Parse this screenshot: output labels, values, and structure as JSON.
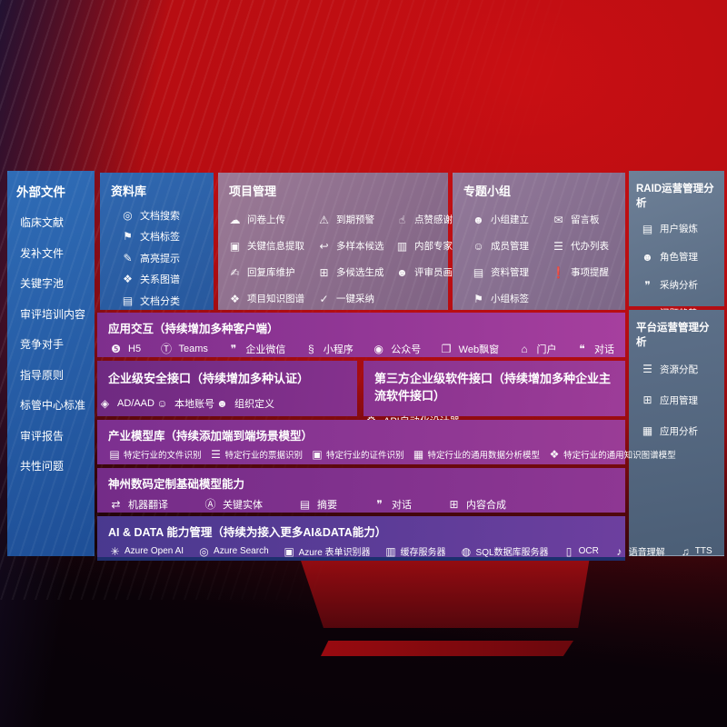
{
  "colors": {
    "background_red": "#c90f13",
    "panel_blue": "#2b63ab",
    "panel_mauve": "#8d7192",
    "panel_slate": "#63758c",
    "row_purple": "#8a3592",
    "row_indigo": "#55409a",
    "text": "#ffffff"
  },
  "sidebar": {
    "title": "外部文件",
    "items": [
      {
        "name": "external-clinical-literature",
        "label": "临床文献"
      },
      {
        "name": "external-supplement-files",
        "label": "发补文件"
      },
      {
        "name": "external-keyword-pool",
        "label": "关键字池"
      },
      {
        "name": "external-review-training",
        "label": "审评培训内容"
      },
      {
        "name": "external-competitors",
        "label": "竞争对手"
      },
      {
        "name": "external-guidelines",
        "label": "指导原则"
      },
      {
        "name": "external-center-standards",
        "label": "标管中心标准"
      },
      {
        "name": "external-review-reports",
        "label": "审评报告"
      },
      {
        "name": "external-common-issues",
        "label": "共性问题"
      }
    ]
  },
  "library": {
    "title": "资料库",
    "items": [
      {
        "name": "doc-search",
        "icon": "doc-search-icon",
        "glyph": "◎",
        "label": "文档搜索"
      },
      {
        "name": "doc-tags",
        "icon": "tag-icon",
        "glyph": "⚑",
        "label": "文档标签"
      },
      {
        "name": "highlight-tips",
        "icon": "pen-icon",
        "glyph": "✎",
        "label": "高亮提示"
      },
      {
        "name": "relation-graph",
        "icon": "graph-icon",
        "glyph": "❖",
        "label": "关系图谱"
      },
      {
        "name": "doc-classification",
        "icon": "docs-icon",
        "glyph": "▤",
        "label": "文档分类"
      }
    ]
  },
  "project": {
    "title": "项目管理",
    "items": [
      {
        "name": "questionnaire-upload",
        "icon": "cloud-upload-icon",
        "glyph": "☁",
        "label": "问卷上传"
      },
      {
        "name": "due-warning",
        "icon": "alarm-icon",
        "glyph": "⚠",
        "label": "到期预警"
      },
      {
        "name": "like-thanks",
        "icon": "thumb-up-icon",
        "glyph": "☝",
        "label": "点赞感谢"
      },
      {
        "name": "key-info-extract",
        "icon": "extract-icon",
        "glyph": "▣",
        "label": "关键信息提取"
      },
      {
        "name": "multi-sample-candidate",
        "icon": "reply-arrow-icon",
        "glyph": "↩",
        "label": "多样本候选"
      },
      {
        "name": "internal-expert-ranking",
        "icon": "podium-icon",
        "glyph": "▥",
        "label": "内部专家排名"
      },
      {
        "name": "reply-repo-maintain",
        "icon": "write-icon",
        "glyph": "✍",
        "label": "回复库维护"
      },
      {
        "name": "multi-candidate-generate",
        "icon": "grid-icon",
        "glyph": "⊞",
        "label": "多候选生成"
      },
      {
        "name": "reviewer-profile",
        "icon": "person-icon",
        "glyph": "☻",
        "label": "评审员画像"
      },
      {
        "name": "project-knowledge-graph",
        "icon": "knowledge-graph-icon",
        "glyph": "❖",
        "label": "项目知识图谱"
      },
      {
        "name": "one-click-adopt",
        "icon": "check-icon",
        "glyph": "✓",
        "label": "一键采纳"
      }
    ]
  },
  "topic_group": {
    "title": "专题小组",
    "col1": [
      {
        "name": "group-create",
        "icon": "people-icon",
        "glyph": "☻",
        "label": "小组建立"
      },
      {
        "name": "member-manage",
        "icon": "person-add-icon",
        "glyph": "☺",
        "label": "成员管理"
      },
      {
        "name": "material-manage",
        "icon": "folder-icon",
        "glyph": "▤",
        "label": "资料管理"
      },
      {
        "name": "group-tags",
        "icon": "tag-icon",
        "glyph": "⚑",
        "label": "小组标签"
      }
    ],
    "col2": [
      {
        "name": "message-board",
        "icon": "bbs-icon",
        "glyph": "✉",
        "label": "留言板"
      },
      {
        "name": "todo-list",
        "icon": "clipboard-icon",
        "glyph": "☰",
        "label": "代办列表"
      },
      {
        "name": "matter-reminder",
        "icon": "bell-icon",
        "glyph": "❗",
        "label": "事项提醒"
      }
    ]
  },
  "raid": {
    "title": "RAID运营管理分析",
    "items": [
      {
        "name": "user-training",
        "icon": "id-card-icon",
        "glyph": "▤",
        "label": "用户锻炼"
      },
      {
        "name": "role-manage",
        "icon": "roles-icon",
        "glyph": "☻",
        "label": "角色管理"
      },
      {
        "name": "adoption-analysis",
        "icon": "chat-bubbles-icon",
        "glyph": "❞",
        "label": "采纳分析"
      },
      {
        "name": "issue-trend",
        "icon": "trend-chart-icon",
        "glyph": "↗",
        "label": "问题趋势"
      }
    ]
  },
  "platform": {
    "title": "平台运营管理分析",
    "items": [
      {
        "name": "resource-allocation",
        "icon": "list-icon",
        "glyph": "☰",
        "label": "资源分配"
      },
      {
        "name": "app-manage",
        "icon": "apps-grid-icon",
        "glyph": "⊞",
        "label": "应用管理"
      },
      {
        "name": "app-analysis",
        "icon": "chart-icon",
        "glyph": "▦",
        "label": "应用分析"
      }
    ]
  },
  "rows": {
    "interaction": {
      "title": "应用交互（持续增加多种客户端）",
      "items": [
        {
          "name": "client-h5",
          "icon": "html5-icon",
          "glyph": "❺",
          "label": "H5"
        },
        {
          "name": "client-teams",
          "icon": "teams-icon",
          "glyph": "Ⓣ",
          "label": "Teams"
        },
        {
          "name": "client-wecom",
          "icon": "wecom-icon",
          "glyph": "❞",
          "label": "企业微信"
        },
        {
          "name": "client-miniprogram",
          "icon": "miniprogram-icon",
          "glyph": "§",
          "label": "小程序"
        },
        {
          "name": "client-official-account",
          "icon": "official-account-icon",
          "glyph": "◉",
          "label": "公众号"
        },
        {
          "name": "client-web-popup",
          "icon": "web-window-icon",
          "glyph": "❐",
          "label": "Web飘窗"
        },
        {
          "name": "client-portal",
          "icon": "portal-icon",
          "glyph": "⌂",
          "label": "门户"
        },
        {
          "name": "client-dialog",
          "icon": "dialog-icon",
          "glyph": "❝",
          "label": "对话"
        }
      ]
    },
    "security": {
      "title": "企业级安全接口（持续增加多种认证）",
      "items": [
        {
          "name": "auth-ad-aad",
          "icon": "ad-shield-icon",
          "glyph": "◈",
          "label": "AD/AAD"
        },
        {
          "name": "auth-local-account",
          "icon": "local-account-icon",
          "glyph": "☺",
          "label": "本地账号"
        },
        {
          "name": "auth-org-definition",
          "icon": "org-icon",
          "glyph": "☻",
          "label": "组织定义"
        }
      ]
    },
    "third_party": {
      "title": "第三方企业级软件接口（持续增加多种企业主流软件接口）",
      "items": [
        {
          "name": "api-auto-designer",
          "icon": "gear-api-icon",
          "glyph": "⚙",
          "label": "API自动化设计器"
        }
      ]
    },
    "industry_models": {
      "title": "产业模型库（持续添加端到端场景模型）",
      "items": [
        {
          "name": "industry-file-recognition",
          "icon": "file-icon",
          "glyph": "▤",
          "label": "特定行业的文件识别"
        },
        {
          "name": "industry-invoice-recognition",
          "icon": "receipt-icon",
          "glyph": "☰",
          "label": "特定行业的票据识别"
        },
        {
          "name": "industry-certificate-recognition",
          "icon": "certificate-icon",
          "glyph": "▣",
          "label": "特定行业的证件识别"
        },
        {
          "name": "industry-data-analysis-model",
          "icon": "data-model-icon",
          "glyph": "▦",
          "label": "特定行业的通用数据分析模型"
        },
        {
          "name": "industry-knowledge-graph-model",
          "icon": "knowledge-graph-icon",
          "glyph": "❖",
          "label": "特定行业的通用知识图谱模型"
        }
      ]
    },
    "base_models": {
      "title": "神州数码定制基础模型能力",
      "items": [
        {
          "name": "machine-translation",
          "icon": "translate-icon",
          "glyph": "⇄",
          "label": "机器翻译"
        },
        {
          "name": "key-entity",
          "icon": "entity-icon",
          "glyph": "Ⓐ",
          "label": "关键实体"
        },
        {
          "name": "summary",
          "icon": "summary-doc-icon",
          "glyph": "▤",
          "label": "摘要"
        },
        {
          "name": "dialog",
          "icon": "chat-icon",
          "glyph": "❞",
          "label": "对话"
        },
        {
          "name": "content-synthesis",
          "icon": "compose-icon",
          "glyph": "⊞",
          "label": "内容合成"
        }
      ]
    },
    "ai_data": {
      "title": "AI & DATA 能力管理（持续为接入更多AI&DATA能力）",
      "items": [
        {
          "name": "azure-openai",
          "icon": "openai-icon",
          "glyph": "✳",
          "label": "Azure Open AI"
        },
        {
          "name": "azure-search",
          "icon": "search-icon",
          "glyph": "◎",
          "label": "Azure Search"
        },
        {
          "name": "azure-form-recognizer",
          "icon": "form-icon",
          "glyph": "▣",
          "label": "Azure 表单识别器"
        },
        {
          "name": "cache-server",
          "icon": "cache-icon",
          "glyph": "▥",
          "label": "缓存服务器"
        },
        {
          "name": "sql-db-server",
          "icon": "database-icon",
          "glyph": "◍",
          "label": "SQL数据库服务器"
        },
        {
          "name": "ocr",
          "icon": "ocr-icon",
          "glyph": "▯",
          "label": "OCR"
        },
        {
          "name": "speech-understanding",
          "icon": "speech-icon",
          "glyph": "♪",
          "label": "语音理解"
        },
        {
          "name": "tts",
          "icon": "tts-icon",
          "glyph": "♫",
          "label": "TTS"
        }
      ]
    }
  }
}
